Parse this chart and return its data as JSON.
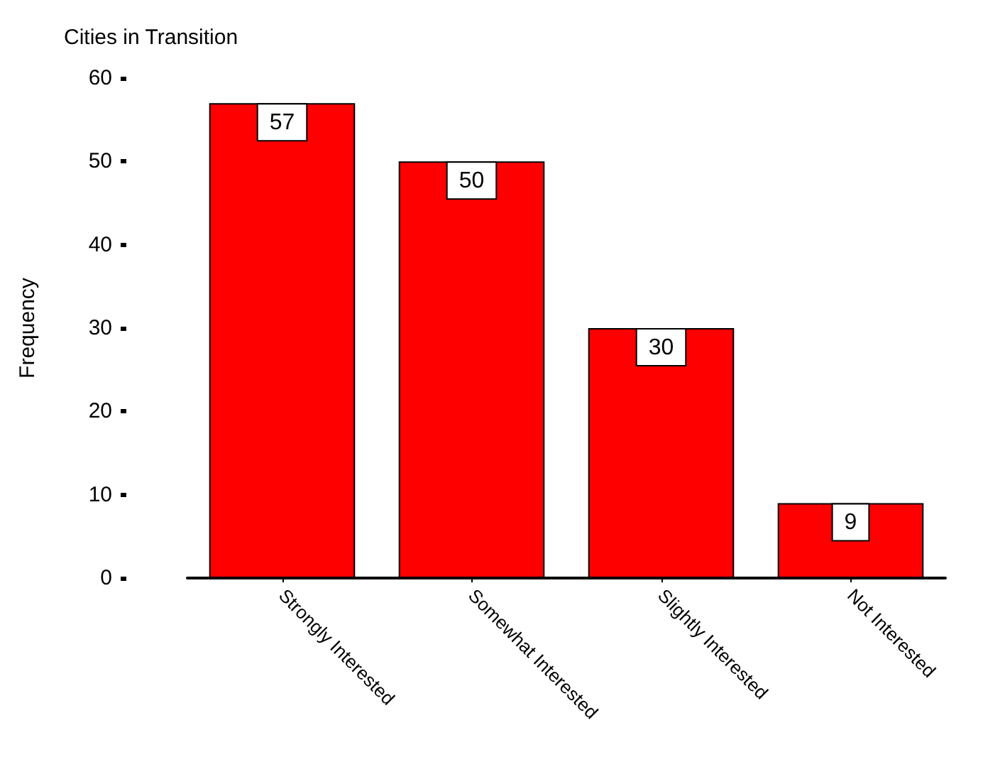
{
  "chart_data": {
    "type": "bar",
    "title": "Cities in Transition",
    "ylabel": "Frequency",
    "categories": [
      "Strongly Interested",
      "Somewhat Interested",
      "Slightly Interested",
      "Not Interested"
    ],
    "values": [
      57,
      50,
      30,
      9
    ],
    "color": "#ff0000",
    "ylim": [
      0,
      60
    ],
    "yticks": [
      0,
      10,
      20,
      30,
      40,
      50,
      60
    ],
    "grid": false,
    "data_labels": true
  }
}
